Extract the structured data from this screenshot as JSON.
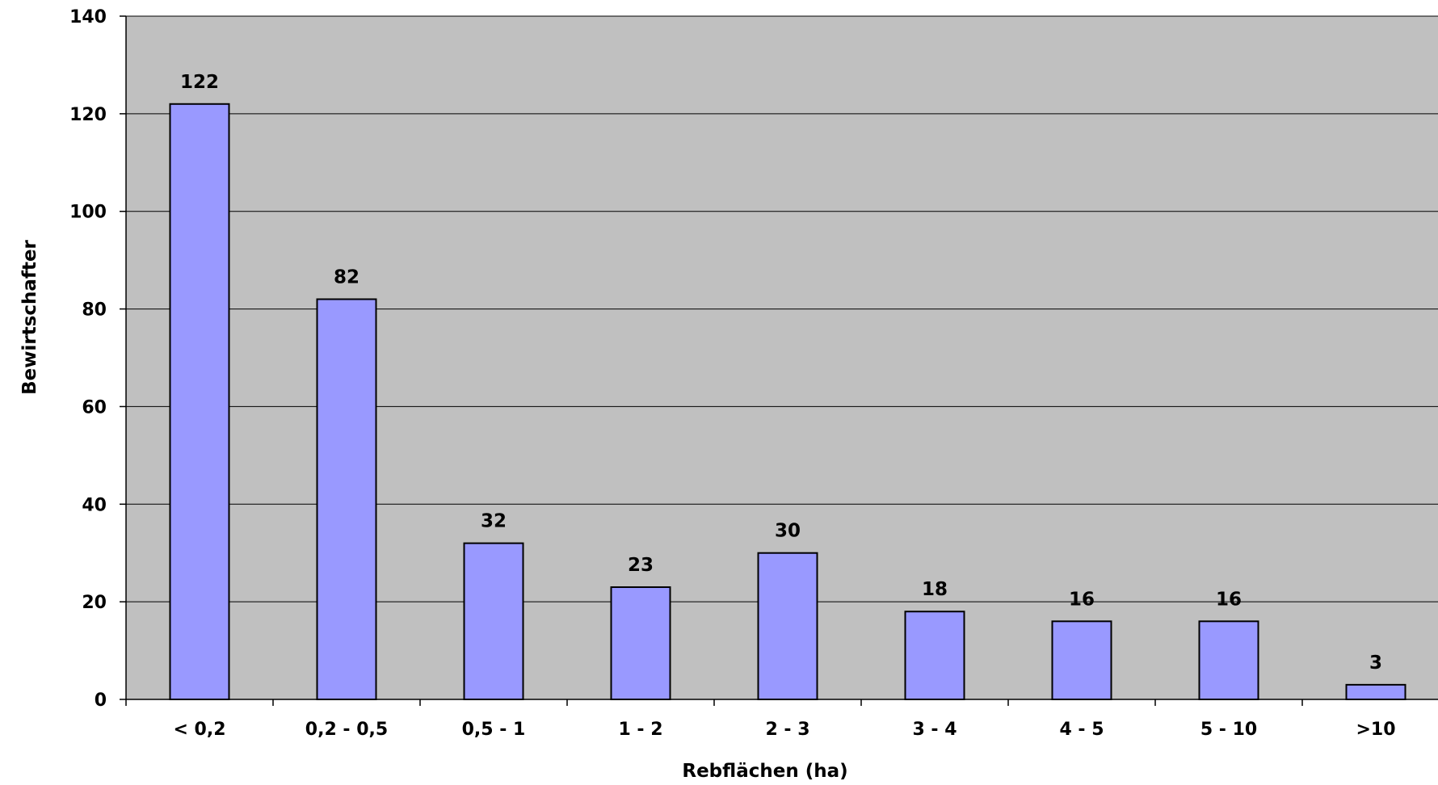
{
  "chart_data": {
    "type": "bar",
    "title": "",
    "xlabel": "Rebflächen (ha)",
    "ylabel": "Bewirtschafter",
    "categories": [
      "< 0,2",
      "0,2 - 0,5",
      "0,5 - 1",
      "1 - 2",
      "2 - 3",
      "3 - 4",
      "4 - 5",
      "5 - 10",
      ">10"
    ],
    "values": [
      122,
      82,
      32,
      23,
      30,
      18,
      16,
      16,
      3
    ],
    "data_labels": [
      "122",
      "82",
      "32",
      "23",
      "30",
      "18",
      "16",
      "16",
      "3"
    ],
    "ylim": [
      0,
      140
    ],
    "yticks": [
      0,
      20,
      40,
      60,
      80,
      100,
      120,
      140
    ],
    "ytick_labels": [
      "0",
      "20",
      "40",
      "60",
      "80",
      "100",
      "120",
      "140"
    ],
    "grid": true,
    "legend": "none",
    "colors": {
      "plot_background": "#c0c0c0",
      "bar_fill": "#9999ff",
      "bar_stroke": "#000000",
      "gridline": "#000000"
    }
  }
}
